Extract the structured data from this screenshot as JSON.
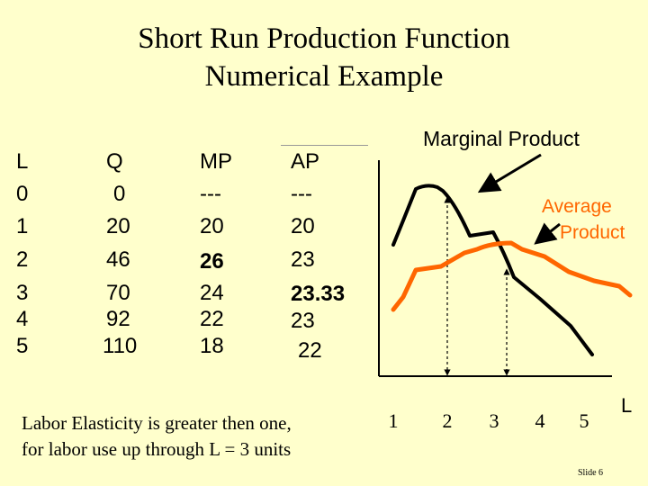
{
  "title": [
    "Short Run Production Function",
    "Numerical Example"
  ],
  "table": {
    "headers": [
      "L",
      "Q",
      "MP",
      "AP"
    ],
    "L": [
      "0",
      "1",
      "2",
      "3",
      "4",
      "5"
    ],
    "Q": [
      "0",
      "20",
      "46",
      "70",
      "92",
      "110"
    ],
    "MP": [
      "---",
      "20",
      "26",
      "24",
      "22",
      "18"
    ],
    "AP": [
      "---",
      "20",
      "23",
      "23.33",
      "23",
      "22"
    ]
  },
  "note": [
    "Labor Elasticity is greater then one,",
    "for labor use up through L = 3 units"
  ],
  "slide_number": "Slide 6",
  "chart_data": {
    "type": "line",
    "x": [
      1,
      2,
      3,
      4,
      5
    ],
    "xlabel": "L",
    "ticks": [
      "1",
      "2",
      "3",
      "4",
      "5"
    ],
    "series": [
      {
        "name": "Marginal Product",
        "color": "#000000",
        "values": [
          20,
          26,
          24,
          22,
          18
        ]
      },
      {
        "name": "Average Product",
        "color": "#ff6600",
        "values": [
          20,
          23,
          23.33,
          23,
          22
        ]
      }
    ],
    "labels": {
      "mp": "Marginal Product",
      "ap_line1": "Average",
      "ap_line2": "Product"
    },
    "label_colors": {
      "ap": "#ff6600"
    }
  }
}
